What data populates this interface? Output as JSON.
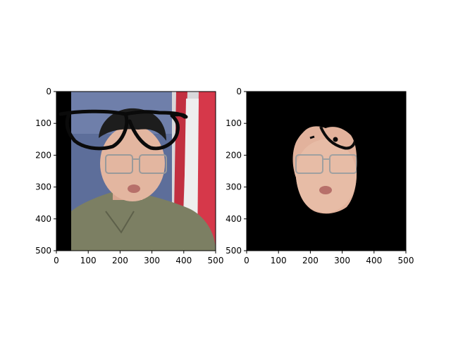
{
  "chart_data": [
    {
      "type": "image",
      "panel": "original-with-glasses-overlay",
      "title": "",
      "xlim": [
        0,
        500
      ],
      "ylim": [
        500,
        0
      ],
      "xticks": [
        0,
        100,
        200,
        300,
        400,
        500
      ],
      "yticks": [
        0,
        100,
        200,
        300,
        400,
        500
      ],
      "xtick_labels": [
        "0",
        "100",
        "200",
        "300",
        "400",
        "500"
      ],
      "ytick_labels": [
        "0",
        "100",
        "200",
        "300",
        "400",
        "500"
      ]
    },
    {
      "type": "image",
      "panel": "masked-face",
      "title": "",
      "xlim": [
        0,
        500
      ],
      "ylim": [
        500,
        0
      ],
      "xticks": [
        0,
        100,
        200,
        300,
        400,
        500
      ],
      "yticks": [
        0,
        100,
        200,
        300,
        400,
        500
      ],
      "xtick_labels": [
        "0",
        "100",
        "200",
        "300",
        "400",
        "500"
      ],
      "ytick_labels": [
        "0",
        "100",
        "200",
        "300",
        "400",
        "500"
      ]
    }
  ]
}
